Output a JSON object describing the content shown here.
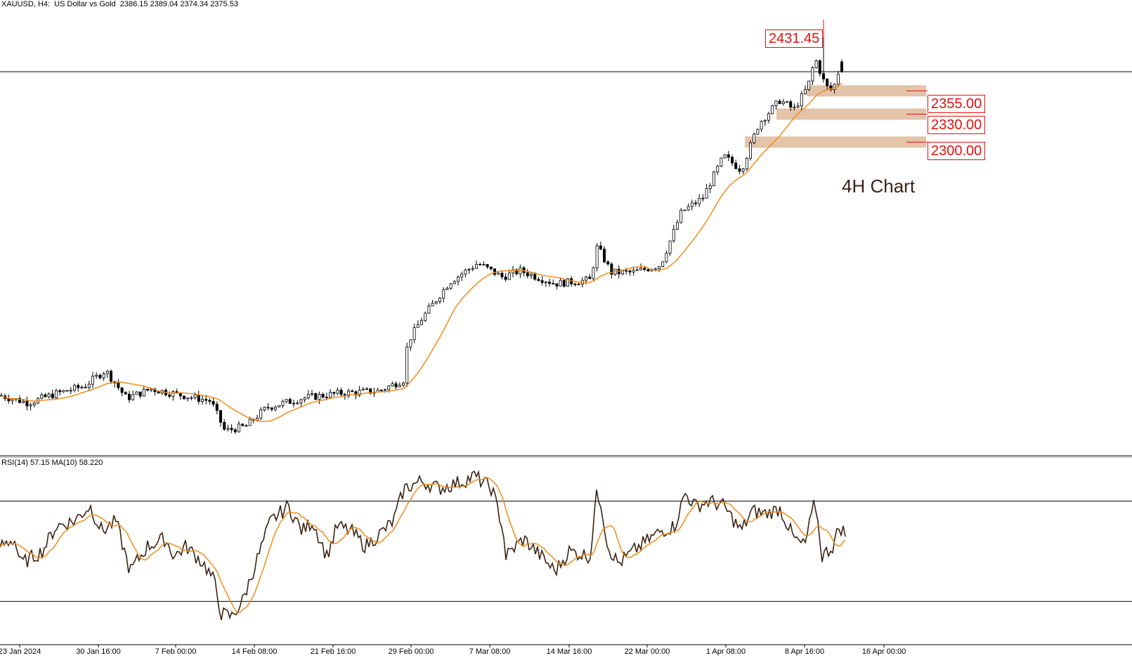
{
  "header": {
    "symbol": "XAUUSD, H4:  US Dollar vs Gold",
    "ohlc": "2386.15 2389.04 2374.34 2375.53"
  },
  "rsi_header": "RSI(14) 57.15 MA(10) 58.220",
  "annotation": "4H Chart",
  "colors": {
    "candle": "#000000",
    "ma": "#f08c1c",
    "rsi": "#3b2414",
    "zone": "#dfb89a",
    "level_label": "#e01010"
  },
  "chart_data": [
    {
      "type": "candlestick",
      "symbol": "XAUUSD",
      "timeframe": "H4",
      "last_ohlc": {
        "open": 2386.15,
        "high": 2389.04,
        "low": 2374.34,
        "close": 2375.53
      },
      "x_tick_labels": [
        "23 Jan 2024",
        "30 Jan 16:00",
        "7 Feb 00:00",
        "14 Feb 08:00",
        "21 Feb 16:00",
        "29 Feb 00:00",
        "7 Mar 08:00",
        "14 Mar 16:00",
        "22 Mar 00:00",
        "1 Apr 08:00",
        "8 Apr 16:00",
        "16 Apr 00:00"
      ],
      "ylim": [
        1970,
        2445
      ],
      "close_path_anchors": [
        [
          0,
          2028
        ],
        [
          40,
          2020
        ],
        [
          80,
          2030
        ],
        [
          120,
          2038
        ],
        [
          150,
          2055
        ],
        [
          180,
          2025
        ],
        [
          215,
          2035
        ],
        [
          260,
          2028
        ],
        [
          300,
          2022
        ],
        [
          320,
          1990
        ],
        [
          350,
          1995
        ],
        [
          380,
          2015
        ],
        [
          430,
          2025
        ],
        [
          480,
          2030
        ],
        [
          540,
          2033
        ],
        [
          575,
          2045
        ],
        [
          580,
          2085
        ],
        [
          600,
          2110
        ],
        [
          640,
          2150
        ],
        [
          680,
          2170
        ],
        [
          715,
          2155
        ],
        [
          740,
          2162
        ],
        [
          790,
          2148
        ],
        [
          840,
          2152
        ],
        [
          850,
          2188
        ],
        [
          870,
          2160
        ],
        [
          900,
          2160
        ],
        [
          940,
          2168
        ],
        [
          970,
          2225
        ],
        [
          1000,
          2240
        ],
        [
          1030,
          2285
        ],
        [
          1055,
          2270
        ],
        [
          1080,
          2320
        ],
        [
          1110,
          2345
        ],
        [
          1130,
          2335
        ],
        [
          1150,
          2360
        ],
        [
          1160,
          2390
        ],
        [
          1175,
          2360
        ],
        [
          1185,
          2355
        ],
        [
          1195,
          2380
        ],
        [
          1200,
          2376
        ]
      ],
      "moving_average": {
        "color": "#f08c1c"
      },
      "last_price_line": 2375.53,
      "high_marker": {
        "label": "2431.45",
        "value": 2431.45
      },
      "support_zones": [
        {
          "label": "2355.00",
          "value": 2355.0
        },
        {
          "label": "2330.00",
          "value": 2330.0
        },
        {
          "label": "2300.00",
          "value": 2300.0
        }
      ]
    },
    {
      "type": "line",
      "name": "RSI(14)",
      "ylim": [
        15,
        85
      ],
      "levels": [
        70,
        30
      ],
      "rsi_anchors": [
        [
          0,
          52
        ],
        [
          20,
          55
        ],
        [
          30,
          45
        ],
        [
          60,
          50
        ],
        [
          80,
          60
        ],
        [
          105,
          62
        ],
        [
          128,
          68
        ],
        [
          145,
          58
        ],
        [
          165,
          62
        ],
        [
          185,
          42
        ],
        [
          210,
          52
        ],
        [
          235,
          55
        ],
        [
          248,
          48
        ],
        [
          265,
          52
        ],
        [
          290,
          45
        ],
        [
          305,
          38
        ],
        [
          315,
          25
        ],
        [
          330,
          24
        ],
        [
          345,
          30
        ],
        [
          370,
          50
        ],
        [
          385,
          62
        ],
        [
          410,
          68
        ],
        [
          430,
          58
        ],
        [
          445,
          62
        ],
        [
          465,
          48
        ],
        [
          480,
          60
        ],
        [
          500,
          58
        ],
        [
          520,
          52
        ],
        [
          545,
          58
        ],
        [
          560,
          62
        ],
        [
          575,
          75
        ],
        [
          600,
          78
        ],
        [
          625,
          75
        ],
        [
          660,
          78
        ],
        [
          675,
          80
        ],
        [
          700,
          75
        ],
        [
          715,
          60
        ],
        [
          720,
          48
        ],
        [
          745,
          55
        ],
        [
          770,
          48
        ],
        [
          790,
          42
        ],
        [
          810,
          50
        ],
        [
          840,
          48
        ],
        [
          848,
          72
        ],
        [
          855,
          70
        ],
        [
          865,
          52
        ],
        [
          880,
          45
        ],
        [
          910,
          52
        ],
        [
          940,
          58
        ],
        [
          960,
          60
        ],
        [
          975,
          73
        ],
        [
          990,
          68
        ],
        [
          1010,
          70
        ],
        [
          1030,
          68
        ],
        [
          1055,
          58
        ],
        [
          1070,
          66
        ],
        [
          1090,
          65
        ],
        [
          1110,
          67
        ],
        [
          1130,
          55
        ],
        [
          1145,
          52
        ],
        [
          1160,
          70
        ],
        [
          1170,
          48
        ],
        [
          1185,
          52
        ],
        [
          1195,
          60
        ],
        [
          1203,
          57
        ]
      ],
      "ma_period": 10
    }
  ]
}
